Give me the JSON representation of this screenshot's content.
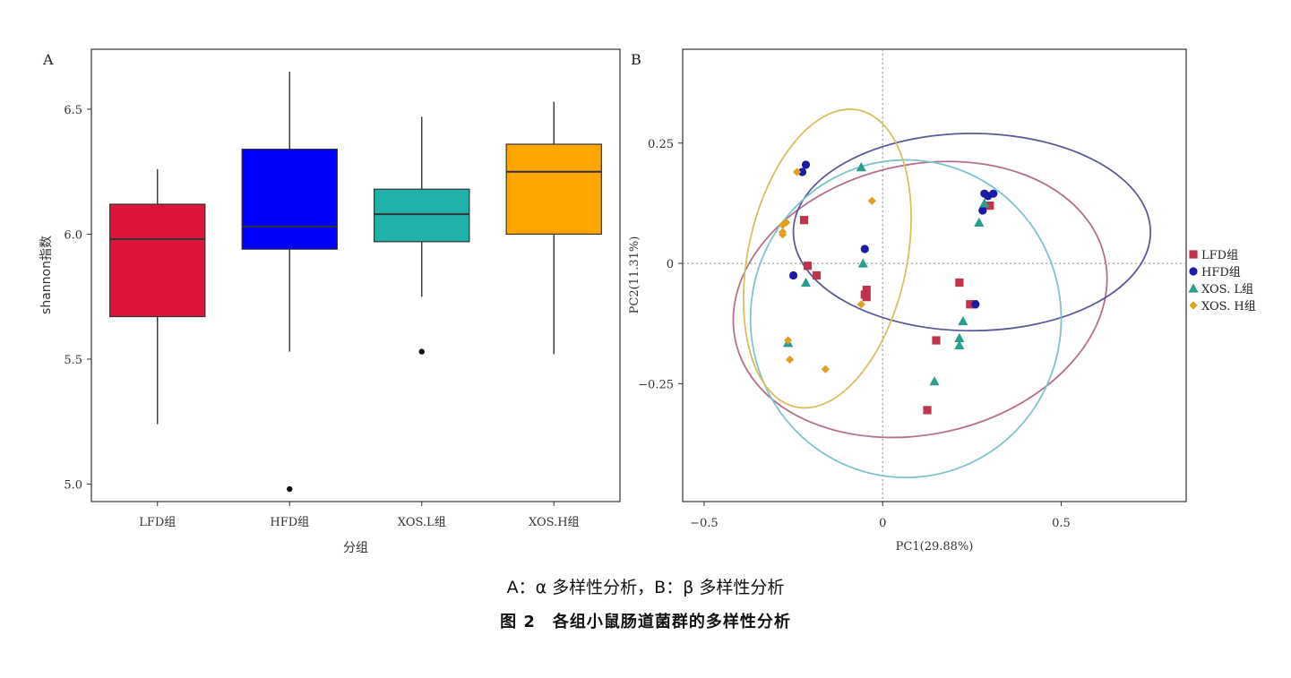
{
  "caption": {
    "sub": "A：α 多样性分析，B：β 多样性分析",
    "main": "图 2　各组小鼠肠道菌群的多样性分析"
  },
  "chart_data": [
    {
      "panel_label": "A",
      "type": "box",
      "xlabel": "分组",
      "ylabel": "shannon指数",
      "categories": [
        "LFD组",
        "HFD组",
        "XOS.L组",
        "XOS.H组"
      ],
      "colors": [
        "#dc143c",
        "#0000ff",
        "#20b2aa",
        "#ffa500"
      ],
      "ylim": [
        4.93,
        6.74
      ],
      "yticks": [
        5.0,
        5.5,
        6.0,
        6.5
      ],
      "ytick_labels": [
        "5.0",
        "5.5",
        "6.0",
        "6.5"
      ],
      "grid": false,
      "boxes": [
        {
          "min": 5.24,
          "q1": 5.67,
          "median": 5.98,
          "q3": 6.12,
          "max": 6.26,
          "outliers": []
        },
        {
          "min": 5.53,
          "q1": 5.94,
          "median": 6.03,
          "q3": 6.34,
          "max": 6.65,
          "outliers": [
            4.98
          ]
        },
        {
          "min": 5.75,
          "q1": 5.97,
          "median": 6.08,
          "q3": 6.18,
          "max": 6.47,
          "outliers": [
            5.53
          ]
        },
        {
          "min": 5.52,
          "q1": 6.0,
          "median": 6.25,
          "q3": 6.36,
          "max": 6.53,
          "outliers": []
        }
      ]
    },
    {
      "panel_label": "B",
      "type": "scatter",
      "xlabel": "PC1(29.88%)",
      "ylabel": "PC2(11.31%)",
      "xlim": [
        -0.56,
        0.85
      ],
      "ylim": [
        -0.495,
        0.445
      ],
      "xticks": [
        -0.5,
        0,
        0.5
      ],
      "xtick_labels": [
        "−0.5",
        "0",
        "0.5"
      ],
      "yticks": [
        -0.25,
        0,
        0.25
      ],
      "ytick_labels": [
        "−0.25",
        "0",
        "0.25"
      ],
      "grid": false,
      "reference_lines": "dotted at x=0 and y=0",
      "legend_position": "right",
      "series": [
        {
          "name": "LFD组",
          "color": "#c0334d",
          "marker": "square",
          "ellipse": {
            "cx": 0.105,
            "cy": -0.075,
            "rx": 0.53,
            "ry": 0.28,
            "angle": 13,
            "color": "#b37090"
          },
          "points": [
            [
              -0.22,
              0.09
            ],
            [
              -0.21,
              -0.005
            ],
            [
              -0.185,
              -0.025
            ],
            [
              -0.045,
              -0.055
            ],
            [
              -0.05,
              -0.065
            ],
            [
              -0.045,
              -0.07
            ],
            [
              0.215,
              -0.04
            ],
            [
              0.15,
              -0.16
            ],
            [
              0.125,
              -0.305
            ],
            [
              0.3,
              0.12
            ],
            [
              0.255,
              -0.085
            ],
            [
              0.245,
              -0.085
            ]
          ]
        },
        {
          "name": "HFD组",
          "color": "#1a1aa6",
          "marker": "circle",
          "ellipse": {
            "cx": 0.25,
            "cy": 0.065,
            "rx": 0.5,
            "ry": 0.205,
            "angle": 0,
            "color": "#5a5a9a"
          },
          "points": [
            [
              -0.215,
              0.205
            ],
            [
              -0.225,
              0.19
            ],
            [
              -0.25,
              -0.025
            ],
            [
              -0.05,
              0.03
            ],
            [
              0.285,
              0.145
            ],
            [
              0.295,
              0.14
            ],
            [
              0.31,
              0.145
            ],
            [
              0.28,
              0.11
            ],
            [
              0.26,
              -0.085
            ]
          ]
        },
        {
          "name": "XOS. L组",
          "color": "#2a9d8f",
          "marker": "triangle",
          "ellipse": {
            "cx": 0.065,
            "cy": -0.115,
            "rx": 0.435,
            "ry": 0.33,
            "angle": 0,
            "color": "#7fc4cc"
          },
          "points": [
            [
              -0.06,
              0.2
            ],
            [
              -0.055,
              0.0
            ],
            [
              -0.215,
              -0.04
            ],
            [
              -0.265,
              -0.165
            ],
            [
              0.27,
              0.085
            ],
            [
              0.285,
              0.125
            ],
            [
              0.225,
              -0.12
            ],
            [
              0.215,
              -0.155
            ],
            [
              0.215,
              -0.17
            ],
            [
              0.145,
              -0.245
            ]
          ]
        },
        {
          "name": "XOS. H组",
          "color": "#e0a020",
          "marker": "diamond",
          "ellipse": {
            "cx": -0.155,
            "cy": 0.01,
            "rx": 0.425,
            "ry": 0.165,
            "angle": 78,
            "color": "#d6c060"
          },
          "points": [
            [
              -0.24,
              0.19
            ],
            [
              -0.27,
              0.085
            ],
            [
              -0.28,
              0.08
            ],
            [
              -0.28,
              0.065
            ],
            [
              -0.28,
              0.06
            ],
            [
              -0.03,
              0.13
            ],
            [
              -0.06,
              -0.085
            ],
            [
              -0.265,
              -0.16
            ],
            [
              -0.26,
              -0.2
            ],
            [
              -0.16,
              -0.22
            ]
          ]
        }
      ]
    }
  ]
}
